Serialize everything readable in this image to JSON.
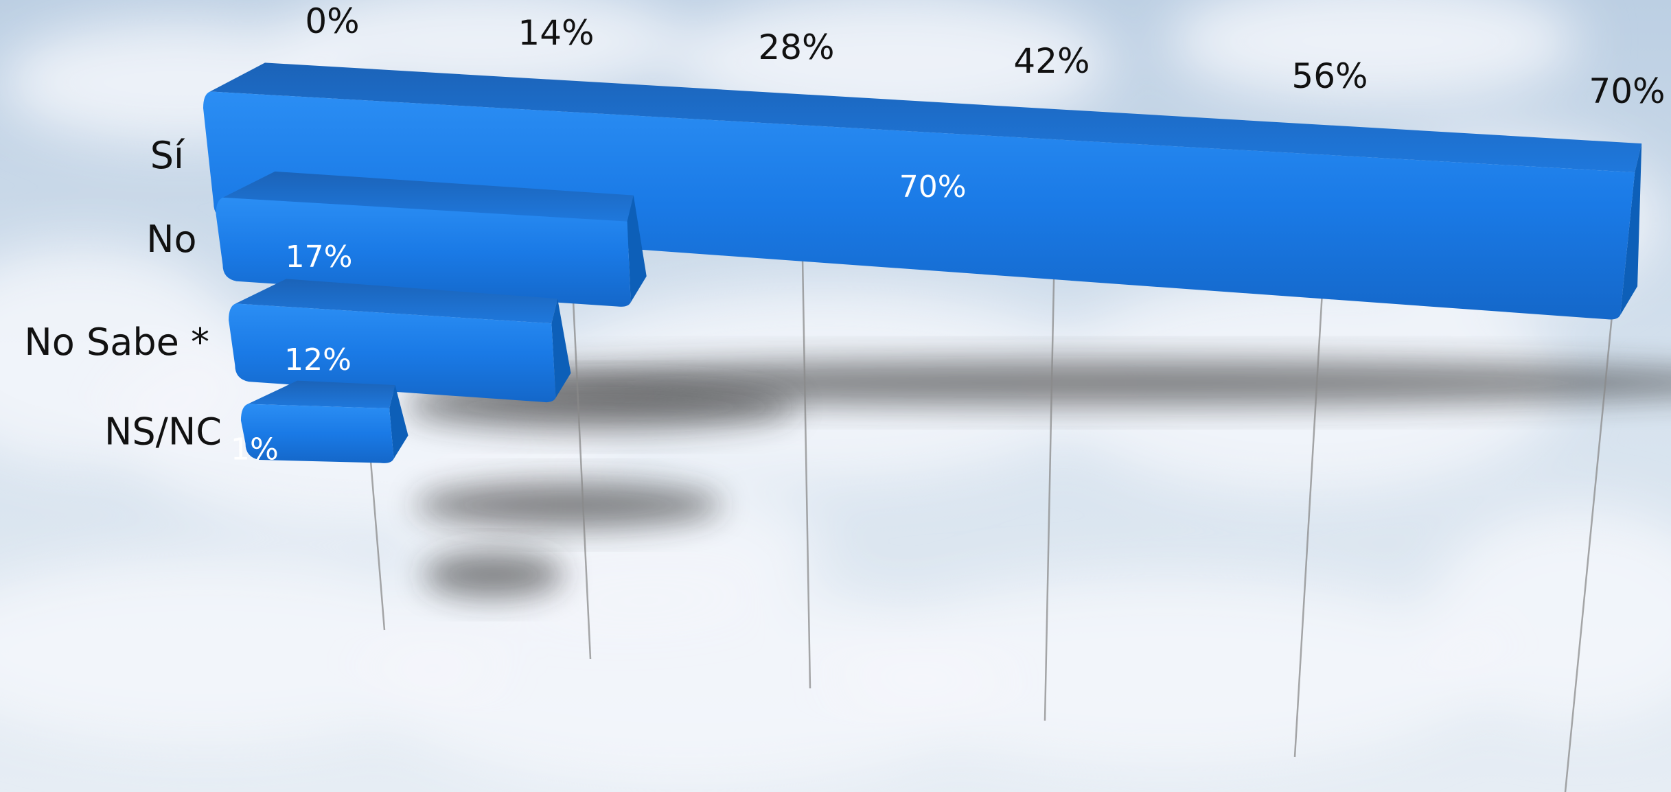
{
  "chart_data": {
    "type": "bar",
    "orientation": "horizontal",
    "style": "3d-perspective",
    "categories": [
      "Sí",
      "No",
      "No Sabe *",
      "NS/NC"
    ],
    "values": [
      70,
      17,
      12,
      1
    ],
    "value_labels": [
      "70%",
      "17%",
      "12%",
      "1%"
    ],
    "xlim": [
      0,
      70
    ],
    "x_ticks": [
      0,
      14,
      28,
      42,
      56,
      70
    ],
    "x_tick_labels": [
      "0%",
      "14%",
      "28%",
      "42%",
      "56%",
      "70%"
    ],
    "grid": true,
    "legend": "none"
  },
  "colors": {
    "bar": "#1a7ae6",
    "bar_dark": "#0d5fb8",
    "bar_top": "#2a8ff5",
    "sky": "#c9d8e8",
    "cloud": "#f4f7fb",
    "grid": "#8a8a8a"
  }
}
